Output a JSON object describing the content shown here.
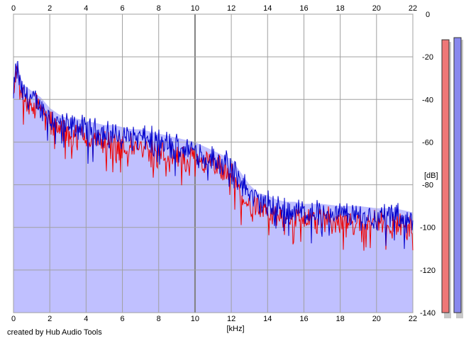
{
  "credit": "created by Hub Audio Tools",
  "chart_data": {
    "type": "line",
    "xlabel": "[kHz]",
    "ylabel": "[dB]",
    "xlim": [
      0,
      22
    ],
    "ylim": [
      -140,
      0
    ],
    "x_ticks": [
      0,
      2,
      4,
      6,
      8,
      10,
      12,
      14,
      16,
      18,
      20,
      22
    ],
    "y_ticks": [
      0,
      -20,
      -40,
      -60,
      -80,
      -100,
      -120,
      -140
    ],
    "y_tick_labels": [
      "0",
      "-20",
      "-40",
      "-60",
      "-80",
      "-100",
      "-120",
      "-140"
    ],
    "grid": true,
    "area_fill": "#c0c0ff",
    "series": [
      {
        "color": "#0000cc",
        "points": [
          [
            0.0,
            -40
          ],
          [
            0.1,
            -28
          ],
          [
            0.2,
            -26
          ],
          [
            0.3,
            -30
          ],
          [
            0.5,
            -37
          ],
          [
            0.7,
            -38
          ],
          [
            1.0,
            -40
          ],
          [
            1.5,
            -43
          ],
          [
            2.0,
            -48
          ],
          [
            2.5,
            -51
          ],
          [
            3.0,
            -53
          ],
          [
            3.5,
            -53
          ],
          [
            4.0,
            -54
          ],
          [
            4.5,
            -55
          ],
          [
            5.0,
            -56
          ],
          [
            5.5,
            -56
          ],
          [
            6.0,
            -57
          ],
          [
            6.5,
            -58
          ],
          [
            7.0,
            -58
          ],
          [
            7.5,
            -59
          ],
          [
            8.0,
            -60
          ],
          [
            8.5,
            -61
          ],
          [
            9.0,
            -62
          ],
          [
            9.5,
            -63
          ],
          [
            10.0,
            -64
          ],
          [
            10.5,
            -66
          ],
          [
            11.0,
            -68
          ],
          [
            11.5,
            -70
          ],
          [
            12.0,
            -72
          ],
          [
            12.5,
            -78
          ],
          [
            13.0,
            -84
          ],
          [
            13.5,
            -88
          ],
          [
            14.0,
            -89
          ],
          [
            14.5,
            -91
          ],
          [
            15.0,
            -92
          ],
          [
            15.5,
            -92
          ],
          [
            16.0,
            -93
          ],
          [
            17.0,
            -93
          ],
          [
            18.0,
            -94
          ],
          [
            19.0,
            -94
          ],
          [
            20.0,
            -95
          ],
          [
            21.0,
            -95
          ],
          [
            22.0,
            -97
          ]
        ]
      },
      {
        "color": "#ee0000",
        "points": [
          [
            0.0,
            -40
          ],
          [
            0.1,
            -30
          ],
          [
            0.2,
            -29
          ],
          [
            0.3,
            -33
          ],
          [
            0.5,
            -39
          ],
          [
            0.7,
            -40
          ],
          [
            1.0,
            -42
          ],
          [
            1.5,
            -45
          ],
          [
            2.0,
            -51
          ],
          [
            2.5,
            -54
          ],
          [
            3.0,
            -56
          ],
          [
            3.5,
            -57
          ],
          [
            4.0,
            -58
          ],
          [
            4.5,
            -59
          ],
          [
            5.0,
            -60
          ],
          [
            5.5,
            -61
          ],
          [
            6.0,
            -62
          ],
          [
            6.5,
            -62
          ],
          [
            7.0,
            -63
          ],
          [
            7.5,
            -64
          ],
          [
            8.0,
            -65
          ],
          [
            8.5,
            -66
          ],
          [
            9.0,
            -67
          ],
          [
            9.5,
            -68
          ],
          [
            10.0,
            -69
          ],
          [
            10.5,
            -70
          ],
          [
            11.0,
            -71
          ],
          [
            11.5,
            -73
          ],
          [
            12.0,
            -76
          ],
          [
            12.5,
            -84
          ],
          [
            13.0,
            -90
          ],
          [
            13.5,
            -93
          ],
          [
            14.0,
            -94
          ],
          [
            14.5,
            -95
          ],
          [
            15.0,
            -95
          ],
          [
            15.5,
            -96
          ],
          [
            16.0,
            -96
          ],
          [
            17.0,
            -96
          ],
          [
            18.0,
            -97
          ],
          [
            19.0,
            -97
          ],
          [
            20.0,
            -97
          ],
          [
            21.0,
            -98
          ],
          [
            22.0,
            -99
          ]
        ]
      }
    ],
    "meters": [
      {
        "color": "#ee7777",
        "level_db": -12
      },
      {
        "color": "#8888ee",
        "level_db": -11
      }
    ]
  }
}
